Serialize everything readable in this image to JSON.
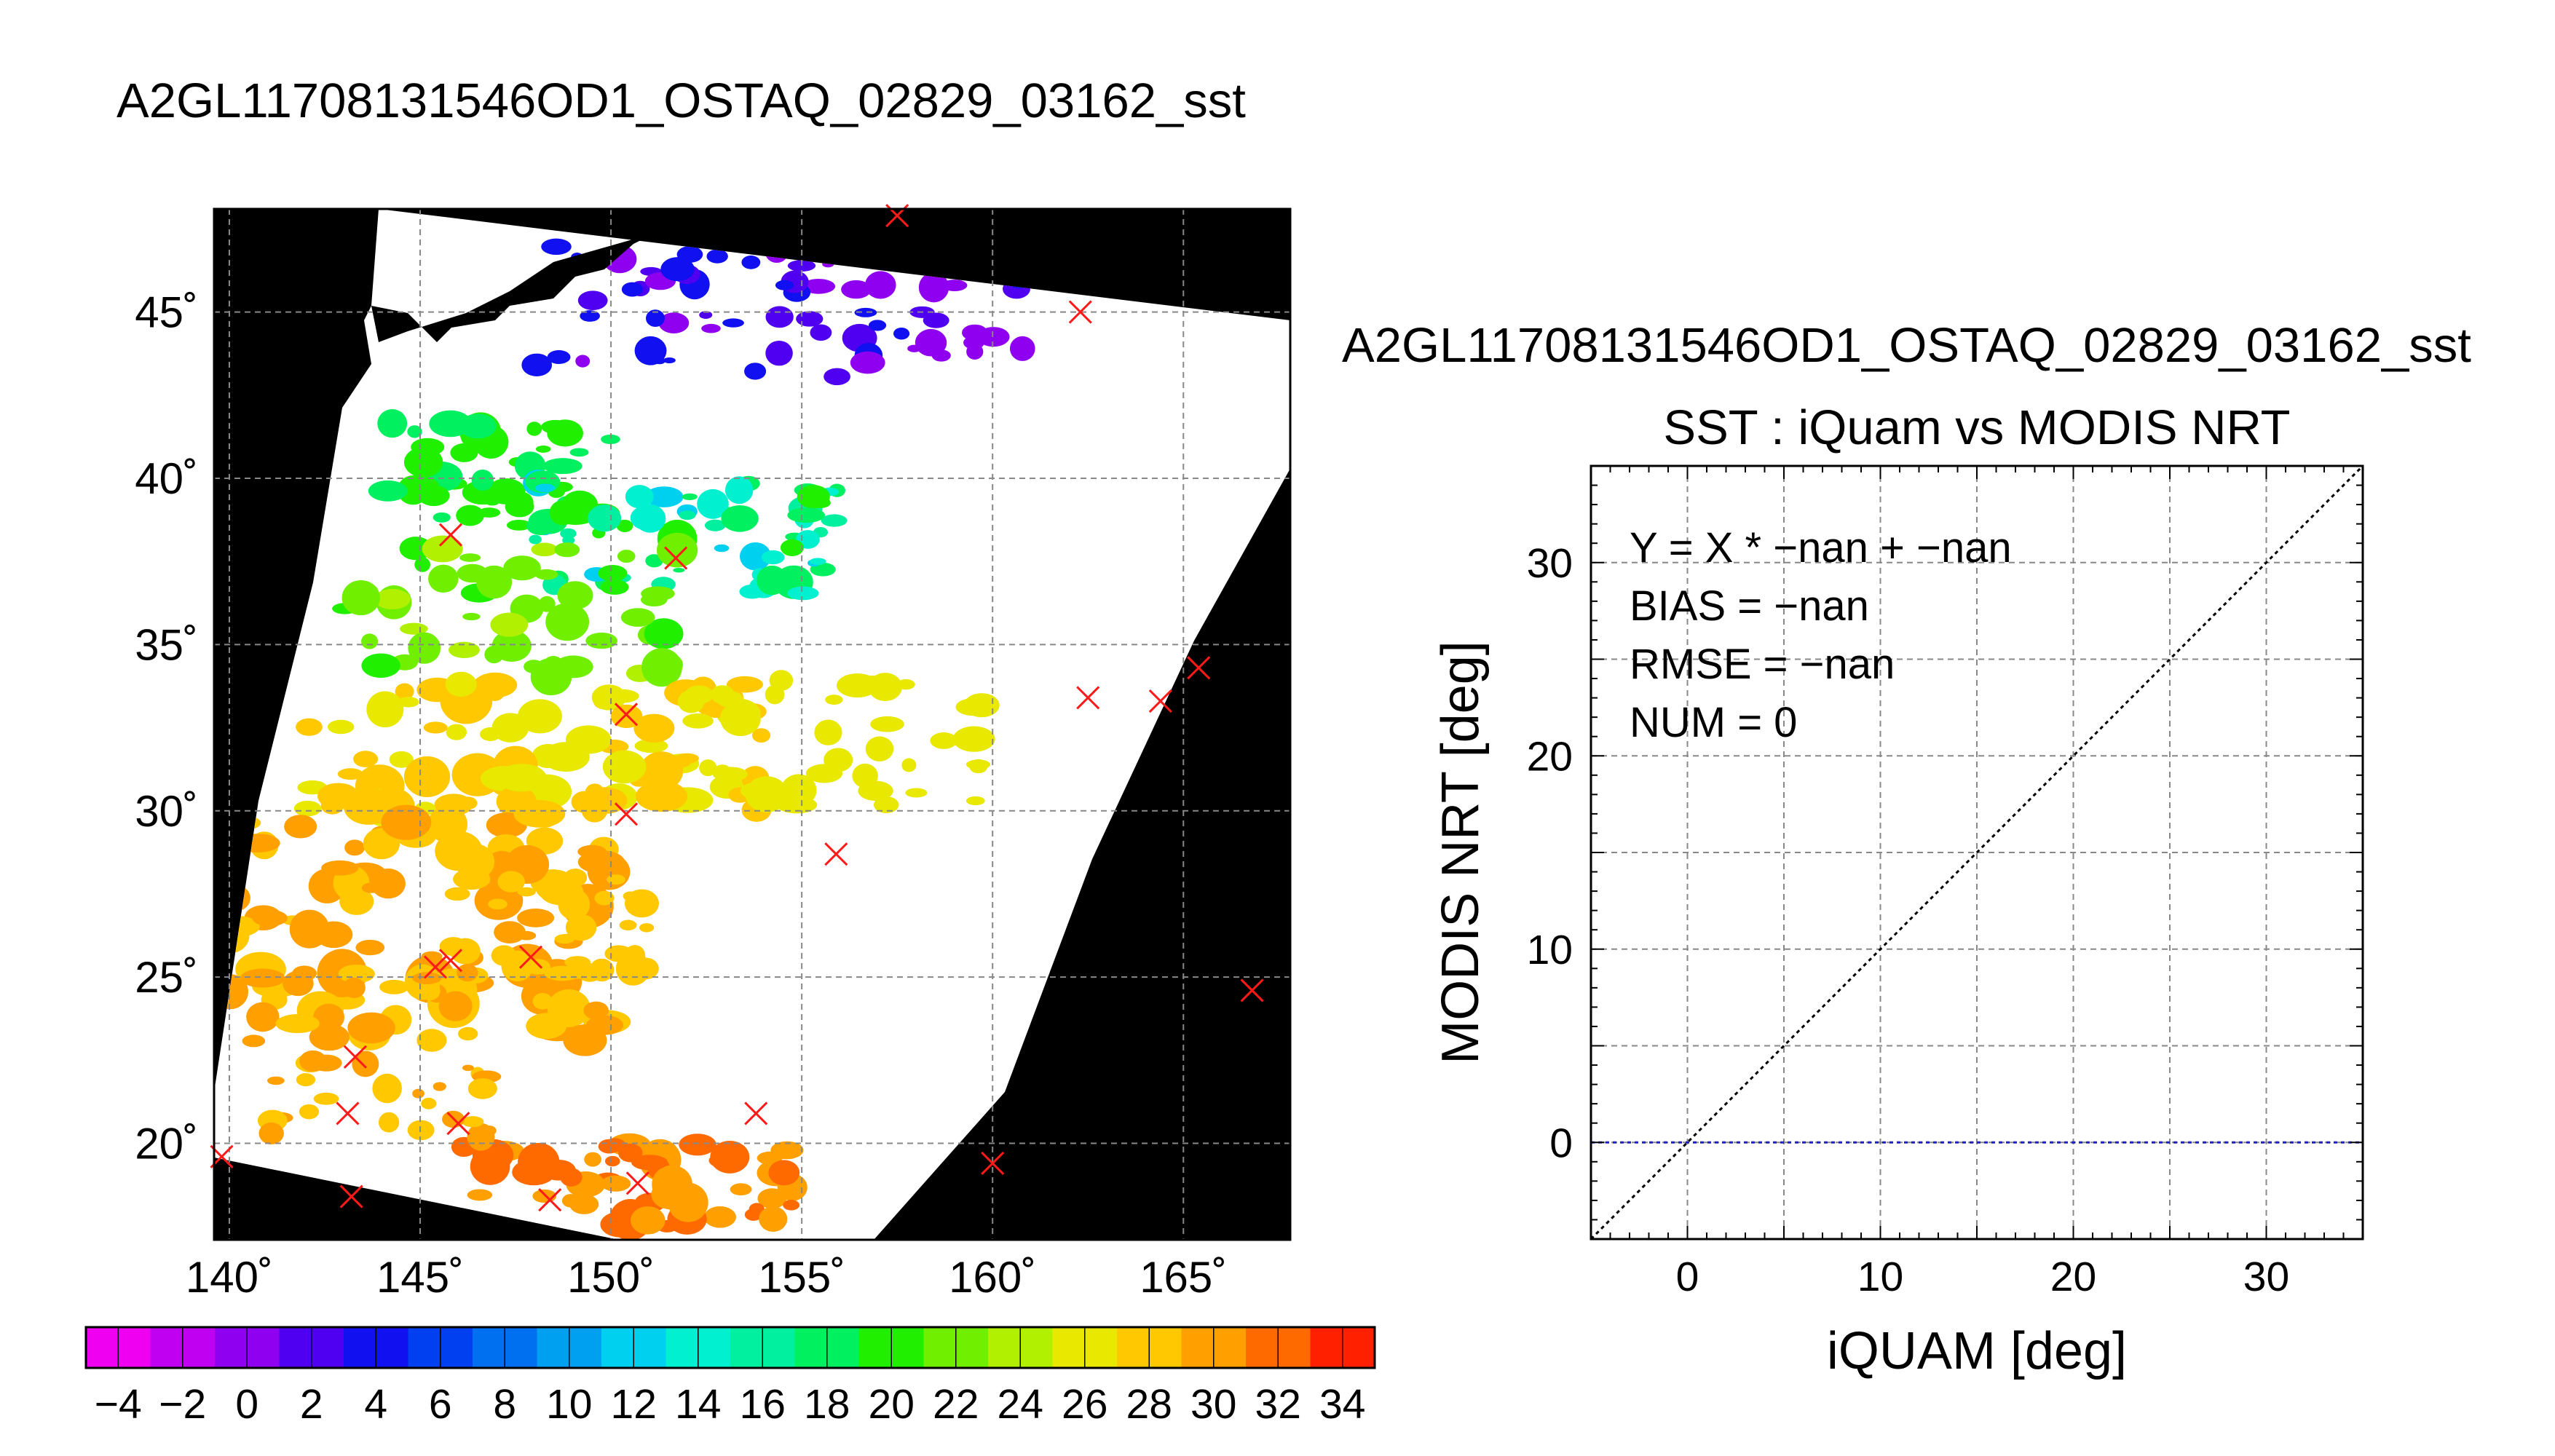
{
  "chart_data": [
    {
      "type": "map",
      "title": "A2GL11708131546OD1_OSTAQ_02829_03162_sst",
      "xlim": [
        139.6,
        167.8
      ],
      "ylim": [
        17.1,
        48.1
      ],
      "x_ticks": [
        140,
        145,
        150,
        155,
        160,
        165
      ],
      "x_tick_labels": [
        "140˚",
        "145˚",
        "150˚",
        "155˚",
        "160˚",
        "165˚"
      ],
      "y_ticks": [
        20,
        25,
        30,
        35,
        40,
        45
      ],
      "y_tick_labels": [
        "20˚",
        "25˚",
        "30˚",
        "35˚",
        "40˚",
        "45˚"
      ],
      "grid": true,
      "swath_color": "#ffffff",
      "background_color": "#000000",
      "marker": "x",
      "marker_color": "#ff1a1a",
      "points": [
        {
          "lon": 157.5,
          "lat": 47.9
        },
        {
          "lon": 162.3,
          "lat": 45.0
        },
        {
          "lon": 145.8,
          "lat": 38.3
        },
        {
          "lon": 151.7,
          "lat": 37.6
        },
        {
          "lon": 165.4,
          "lat": 34.3
        },
        {
          "lon": 162.5,
          "lat": 33.4
        },
        {
          "lon": 164.4,
          "lat": 33.3
        },
        {
          "lon": 150.4,
          "lat": 32.9
        },
        {
          "lon": 150.4,
          "lat": 29.9
        },
        {
          "lon": 155.9,
          "lat": 28.7
        },
        {
          "lon": 147.9,
          "lat": 25.6
        },
        {
          "lon": 145.4,
          "lat": 25.3
        },
        {
          "lon": 145.8,
          "lat": 25.5
        },
        {
          "lon": 166.8,
          "lat": 24.6
        },
        {
          "lon": 143.3,
          "lat": 22.6
        },
        {
          "lon": 143.1,
          "lat": 20.9
        },
        {
          "lon": 146.0,
          "lat": 20.6
        },
        {
          "lon": 153.8,
          "lat": 20.9
        },
        {
          "lon": 139.8,
          "lat": 19.6
        },
        {
          "lon": 160.0,
          "lat": 19.4
        },
        {
          "lon": 150.7,
          "lat": 18.8
        },
        {
          "lon": 143.2,
          "lat": 18.4
        },
        {
          "lon": 148.4,
          "lat": 18.3
        }
      ]
    },
    {
      "type": "colorbar",
      "range": [
        -5,
        35
      ],
      "step": 2,
      "tick_values": [
        -4,
        -2,
        0,
        2,
        4,
        6,
        8,
        10,
        12,
        14,
        16,
        18,
        20,
        22,
        24,
        26,
        28,
        30,
        32,
        34
      ],
      "tick_labels": [
        "−4",
        "−2",
        "0",
        "2",
        "4",
        "6",
        "8",
        "10",
        "12",
        "14",
        "16",
        "18",
        "20",
        "22",
        "24",
        "26",
        "28",
        "30",
        "32",
        "34"
      ],
      "colors": [
        "#f000f0",
        "#c000f0",
        "#9000f0",
        "#5000f0",
        "#1010f0",
        "#0040f0",
        "#0070f0",
        "#00a0f0",
        "#00d0f0",
        "#00f0d0",
        "#00f0a0",
        "#00f060",
        "#20f000",
        "#70f000",
        "#b0f000",
        "#e8e800",
        "#ffc800",
        "#ffa000",
        "#ff6a00",
        "#ff2000"
      ]
    },
    {
      "type": "scatter",
      "top_title": "A2GL11708131546OD1_OSTAQ_02829_03162_sst",
      "title": "SST : iQuam vs MODIS NRT",
      "xlabel": "iQUAM [deg]",
      "ylabel": "MODIS NRT [deg]",
      "xlim": [
        -5,
        35
      ],
      "ylim": [
        -5,
        35
      ],
      "x_ticks": [
        0,
        10,
        20,
        30
      ],
      "y_ticks": [
        0,
        10,
        20,
        30
      ],
      "grid_step": 5,
      "grid": true,
      "stats": [
        "Y = X * −nan + −nan",
        "BIAS = −nan",
        "RMSE = −nan",
        "NUM = 0"
      ],
      "reference_line": {
        "from": [
          -5,
          -5
        ],
        "to": [
          35,
          35
        ],
        "color": "#000000",
        "style": "dotted"
      },
      "fit_line": {
        "y": 0,
        "color": "#2020c0",
        "style": "dotted"
      },
      "points": []
    }
  ]
}
